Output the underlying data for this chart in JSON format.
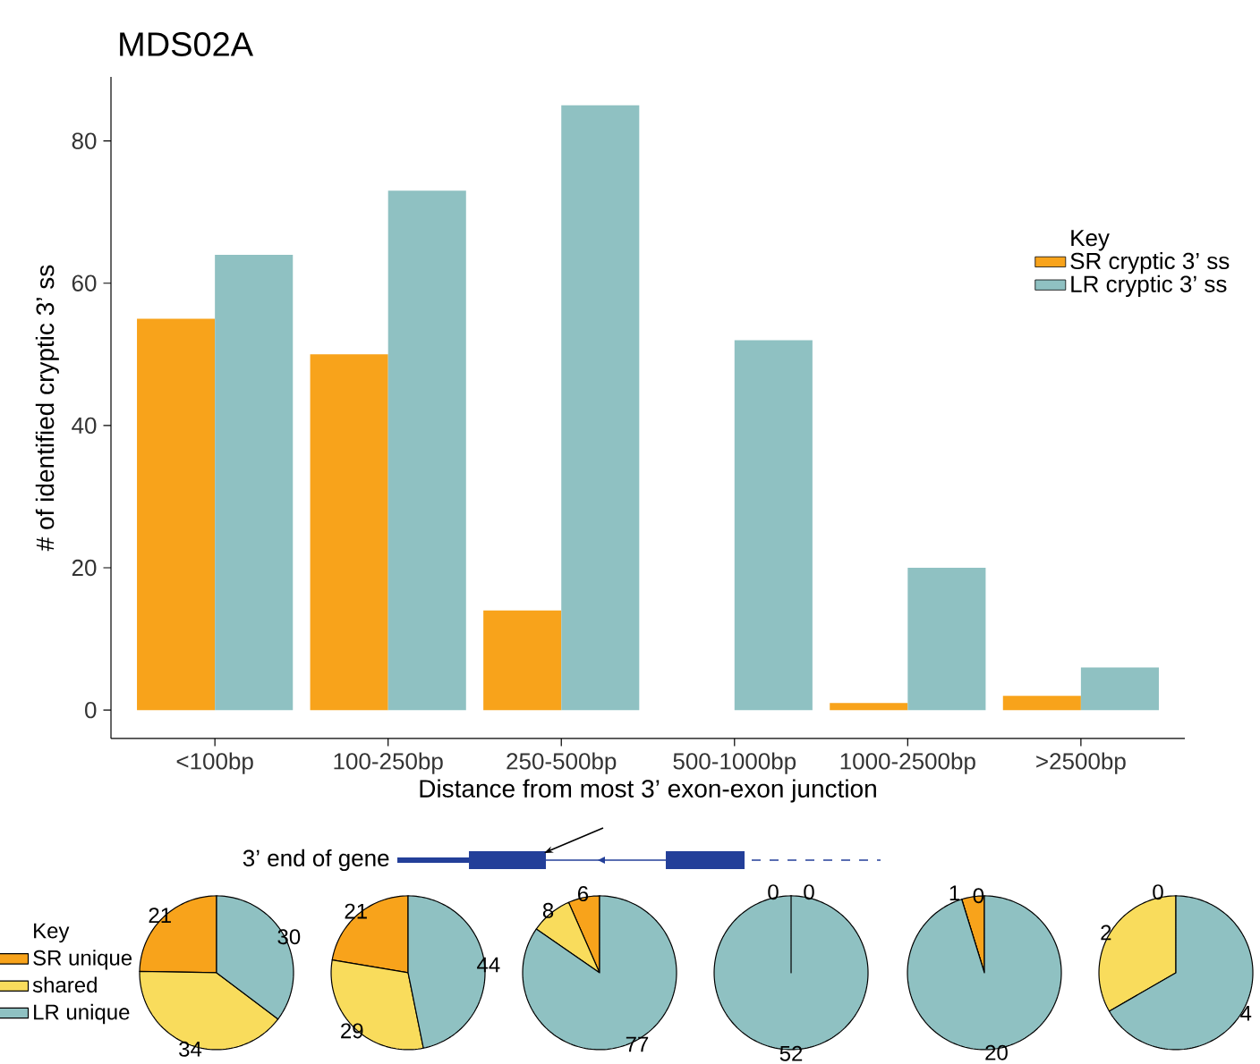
{
  "chart_data": [
    {
      "type": "bar",
      "title": "MDS02A",
      "xlabel": "Distance from most 3’ exon-exon junction",
      "ylabel": "# of identified cryptic 3’ ss",
      "legend_title": "Key",
      "legend": "right",
      "categories": [
        "<100bp",
        "100-250bp",
        "250-500bp",
        "500-1000bp",
        "1000-2500bp",
        ">2500bp"
      ],
      "series": [
        {
          "name": "SR cryptic 3’ ss",
          "color": "#f8a31b",
          "values": [
            55,
            50,
            14,
            0,
            1,
            2
          ]
        },
        {
          "name": "LR cryptic 3’ ss",
          "color": "#8fc1c2",
          "values": [
            64,
            73,
            85,
            52,
            20,
            6
          ]
        }
      ],
      "ylim": [
        -4,
        89
      ],
      "yticks": [
        0,
        20,
        40,
        60,
        80
      ],
      "annotations": [
        "3’ end of gene"
      ]
    },
    {
      "type": "pie",
      "legend": "left",
      "legend_title": "Key",
      "categories": [
        "SR unique",
        "shared",
        "LR unique"
      ],
      "values": [
        21,
        34,
        30
      ],
      "colors": [
        "#f8a31b",
        "#f9dc5c",
        "#8fc1c2"
      ],
      "value_labels": [
        "21",
        "34",
        "30"
      ]
    },
    {
      "type": "pie",
      "categories": [
        null,
        null,
        null
      ],
      "values": [
        21,
        29,
        44
      ],
      "colors": [
        "#f8a31b",
        "#f9dc5c",
        "#8fc1c2"
      ],
      "value_labels": [
        "21",
        "29",
        "44"
      ]
    },
    {
      "type": "pie",
      "categories": [
        null,
        null,
        null
      ],
      "values": [
        6,
        8,
        77
      ],
      "colors": [
        "#f8a31b",
        "#f9dc5c",
        "#8fc1c2"
      ],
      "value_labels": [
        "6",
        "8",
        "77"
      ]
    },
    {
      "type": "pie",
      "categories": [
        null,
        null,
        null
      ],
      "values": [
        0,
        0,
        52
      ],
      "colors": [
        "#f8a31b",
        "#f9dc5c",
        "#8fc1c2"
      ],
      "value_labels": [
        "0",
        "0",
        "52"
      ]
    },
    {
      "type": "pie",
      "categories": [
        null,
        null,
        null
      ],
      "values": [
        1,
        0,
        20
      ],
      "colors": [
        "#f8a31b",
        "#f9dc5c",
        "#8fc1c2"
      ],
      "value_labels": [
        "1",
        "0",
        "20"
      ]
    },
    {
      "type": "pie",
      "categories": [
        null,
        null,
        null
      ],
      "values": [
        0,
        2,
        4
      ],
      "colors": [
        "#f8a31b",
        "#f9dc5c",
        "#8fc1c2"
      ],
      "value_labels": [
        "0",
        "2",
        "4"
      ]
    }
  ]
}
